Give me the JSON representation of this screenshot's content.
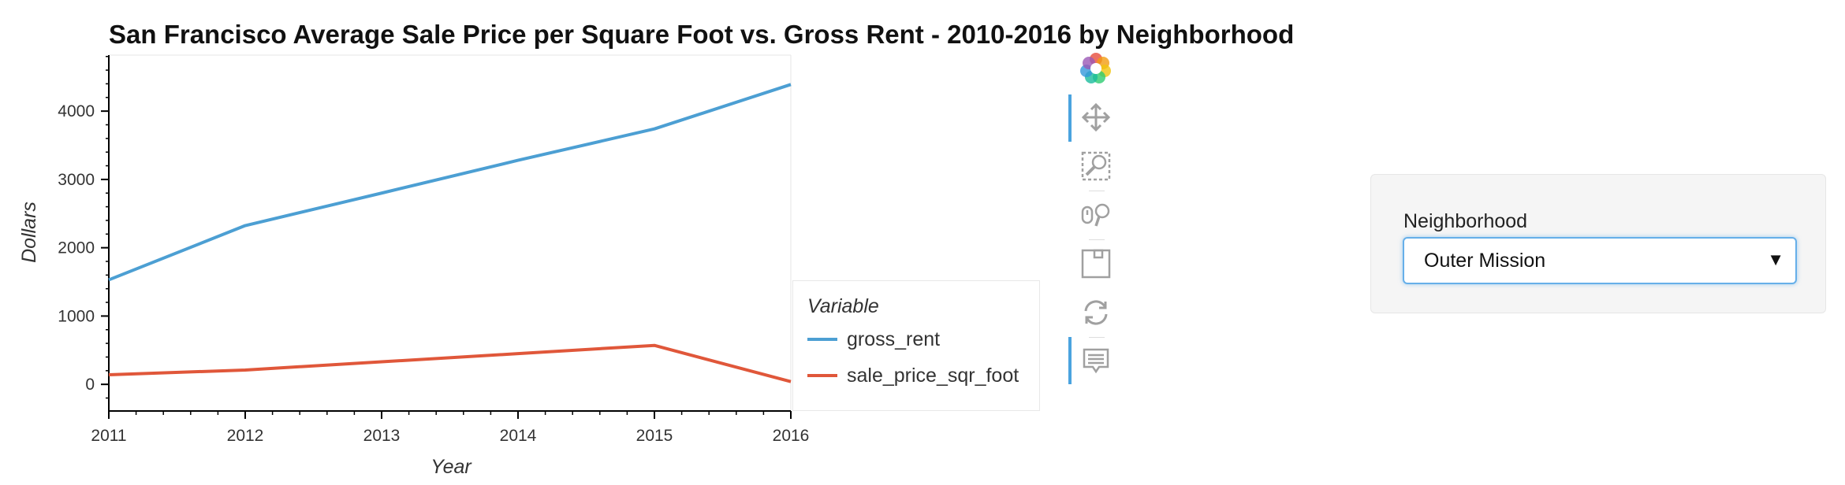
{
  "chart_data": {
    "type": "line",
    "title": "San Francisco Average Sale Price per Square Foot vs. Gross Rent - 2010-2016 by Neighborhood",
    "xlabel": "Year",
    "ylabel": "Dollars",
    "x": [
      2011,
      2012,
      2013,
      2014,
      2015,
      2016
    ],
    "x_ticks": [
      "2011",
      "2012",
      "2013",
      "2014",
      "2015",
      "2016"
    ],
    "y_ticks": [
      "0",
      "1000",
      "2000",
      "3000",
      "4000"
    ],
    "xlim": [
      2011,
      2016
    ],
    "ylim": [
      -390,
      4820
    ],
    "series": [
      {
        "name": "gross_rent",
        "color": "#4c9fd3",
        "values": [
          1530,
          2324,
          2800,
          3280,
          3740,
          4390
        ]
      },
      {
        "name": "sale_price_sqr_foot",
        "color": "#e0573a",
        "values": [
          140,
          210,
          330,
          450,
          570,
          40
        ]
      }
    ],
    "legend": {
      "title": "Variable",
      "placement": "right"
    },
    "grid": false
  },
  "toolbar": {
    "tools": [
      {
        "icon": "bokeh-logo-icon",
        "active": false
      },
      {
        "icon": "pan-icon",
        "active": true
      },
      {
        "icon": "box-zoom-icon",
        "active": false
      },
      {
        "icon": "wheel-zoom-icon",
        "active": false
      },
      {
        "icon": "save-icon",
        "active": false
      },
      {
        "icon": "reset-icon",
        "active": false
      },
      {
        "icon": "hover-icon",
        "active": true
      }
    ]
  },
  "widget": {
    "label": "Neighborhood",
    "selected": "Outer Mission"
  }
}
